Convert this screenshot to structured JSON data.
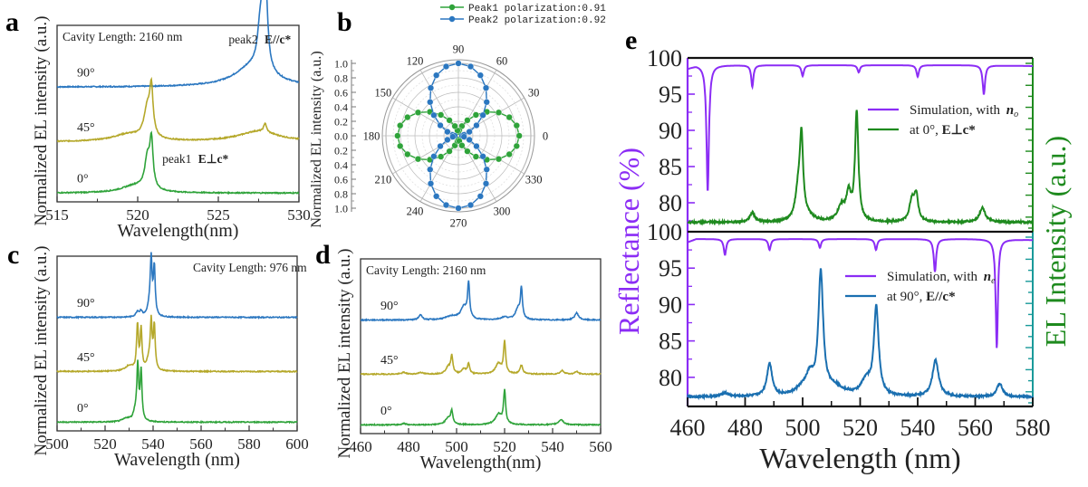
{
  "figure": {
    "panel_labels": [
      "a",
      "b",
      "c",
      "d",
      "e"
    ]
  },
  "chart_data": [
    {
      "panel": "a",
      "type": "line",
      "title": "",
      "annotation": "Cavity Length: 2160 nm",
      "xlabel": "Wavelength(nm)",
      "ylabel": "Normalized EL intensity (a.u.)",
      "xlim": [
        515,
        530
      ],
      "xticks": [
        515,
        520,
        525,
        530
      ],
      "peak_labels": [
        {
          "text": "peak2",
          "bold": "E//c*",
          "x": 526.2,
          "series": "90°"
        },
        {
          "text": "peak1",
          "bold": "E⊥c*",
          "x": 521.3,
          "series": "0°"
        }
      ],
      "series": [
        {
          "name": "90°",
          "color": "#2b77c0",
          "offset": 0.62,
          "baseline": 0.0,
          "peaks": [
            [
              527.2,
              0.12,
              1.4
            ],
            [
              527.6,
              0.22,
              0.2
            ],
            [
              527.95,
              0.35,
              0.15
            ],
            [
              527.8,
              0.28,
              0.12
            ]
          ]
        },
        {
          "name": "45°",
          "color": "#b5a82a",
          "offset": 0.31,
          "baseline": 0.0,
          "peaks": [
            [
              519.4,
              0.04,
              1.2
            ],
            [
              520.6,
              0.17,
              0.25
            ],
            [
              520.85,
              0.25,
              0.12
            ],
            [
              527.5,
              0.06,
              1.5
            ],
            [
              527.9,
              0.05,
              0.1
            ]
          ]
        },
        {
          "name": "0°",
          "color": "#2fa33a",
          "offset": 0.02,
          "baseline": 0.0,
          "peaks": [
            [
              519.8,
              0.04,
              1.0
            ],
            [
              520.6,
              0.17,
              0.2
            ],
            [
              520.85,
              0.26,
              0.12
            ]
          ]
        }
      ]
    },
    {
      "panel": "b",
      "type": "scatter",
      "subtype": "polar",
      "ylabel": "Normalized EL intensity (a.u.)",
      "radial_ticks": [
        "1.0",
        "0.8",
        "0.6",
        "0.4",
        "0.2",
        "0.0",
        "0.2",
        "0.4",
        "0.6",
        "0.8",
        "1.0"
      ],
      "angle_ticks": [
        0,
        30,
        60,
        90,
        120,
        150,
        180,
        210,
        240,
        270,
        300,
        330
      ],
      "rlim": [
        0,
        1.0
      ],
      "angle_step_deg": 10,
      "legend": [
        {
          "label": "Peak1 polarization:0.91",
          "color": "#2fa33a"
        },
        {
          "label": "Peak2 polarization:0.92",
          "color": "#2b77c0"
        }
      ],
      "series": [
        {
          "name": "Peak1",
          "color": "#2fa33a",
          "max": 0.84,
          "min": 0.05,
          "phase_deg": 0
        },
        {
          "name": "Peak2",
          "color": "#2b77c0",
          "max": 1.0,
          "min": 0.05,
          "phase_deg": 90
        }
      ]
    },
    {
      "panel": "c",
      "type": "line",
      "annotation": "Cavity Length: 976 nm",
      "xlabel": "Wavelength (nm)",
      "ylabel": "Normalized EL intensity (a.u.)",
      "xlim": [
        500,
        600
      ],
      "xticks": [
        500,
        520,
        540,
        560,
        580,
        600
      ],
      "series": [
        {
          "name": "90°",
          "color": "#2b77c0",
          "offset": 0.62,
          "peaks": [
            [
              533.5,
              0.03,
              0.8
            ],
            [
              535,
              0.03,
              0.6
            ],
            [
              538.5,
              0.06,
              1.0
            ],
            [
              539.2,
              0.3,
              0.45
            ],
            [
              540.5,
              0.28,
              0.45
            ]
          ]
        },
        {
          "name": "45°",
          "color": "#b5a82a",
          "offset": 0.31,
          "peaks": [
            [
              530,
              0.03,
              2.0
            ],
            [
              533.5,
              0.26,
              0.45
            ],
            [
              535,
              0.23,
              0.45
            ],
            [
              539.2,
              0.26,
              0.45
            ],
            [
              540.5,
              0.25,
              0.45
            ],
            [
              538.2,
              0.06,
              1.0
            ]
          ]
        },
        {
          "name": "0°",
          "color": "#2fa33a",
          "offset": 0.02,
          "peaks": [
            [
              529,
              0.02,
              2.0
            ],
            [
              532.5,
              0.05,
              0.9
            ],
            [
              533.6,
              0.31,
              0.45
            ],
            [
              535,
              0.28,
              0.45
            ]
          ]
        }
      ]
    },
    {
      "panel": "d",
      "type": "line",
      "annotation": "Cavity Length: 2160 nm",
      "xlabel": "Wavelength(nm)",
      "ylabel": "Normalized EL intensity (a.u.)",
      "xlim": [
        460,
        560
      ],
      "xticks": [
        460,
        480,
        500,
        520,
        540,
        560
      ],
      "series": [
        {
          "name": "90°",
          "color": "#2b77c0",
          "offset": 0.62,
          "peaks": [
            [
              485,
              0.03,
              0.8
            ],
            [
              498,
              0.02,
              3.0
            ],
            [
              503,
              0.07,
              1.5
            ],
            [
              505,
              0.2,
              0.5
            ],
            [
              520,
              0.015,
              2.0
            ],
            [
              525.5,
              0.06,
              1.2
            ],
            [
              527,
              0.17,
              0.5
            ],
            [
              550,
              0.04,
              1.0
            ]
          ]
        },
        {
          "name": "45°",
          "color": "#b5a82a",
          "offset": 0.31,
          "peaks": [
            [
              478,
              0.01,
              1.0
            ],
            [
              485,
              0.01,
              1.0
            ],
            [
              496.5,
              0.04,
              1.2
            ],
            [
              498,
              0.1,
              0.5
            ],
            [
              503,
              0.03,
              1.0
            ],
            [
              505,
              0.06,
              0.5
            ],
            [
              517.5,
              0.06,
              1.5
            ],
            [
              520,
              0.18,
              0.5
            ],
            [
              527,
              0.05,
              0.7
            ],
            [
              544,
              0.02,
              1.0
            ],
            [
              550,
              0.015,
              0.8
            ]
          ]
        },
        {
          "name": "0°",
          "color": "#2fa33a",
          "offset": 0.02,
          "peaks": [
            [
              478,
              0.008,
              1.0
            ],
            [
              496.5,
              0.04,
              1.4
            ],
            [
              498,
              0.07,
              0.5
            ],
            [
              517.5,
              0.06,
              1.6
            ],
            [
              520,
              0.19,
              0.5
            ],
            [
              543.5,
              0.03,
              1.2
            ]
          ]
        }
      ]
    },
    {
      "panel": "e",
      "type": "line",
      "xlabel": "Wavelength (nm)",
      "ylabel_left": "Reflectance (%)",
      "ylabel_right": "EL Intensity (a.u.)",
      "xlim": [
        460,
        580
      ],
      "xticks": [
        460,
        480,
        500,
        520,
        540,
        560,
        580
      ],
      "subplots": [
        {
          "ylim": [
            76,
            100
          ],
          "yticks": [
            80,
            85,
            90,
            95,
            100
          ],
          "legend": [
            {
              "label": "Simulation, with ",
              "italic": "n",
              "sub": "o",
              "color": "#8b2cf5"
            },
            {
              "label": "at 0°, ",
              "bold": "E⊥c*",
              "color": "#1e8a1e"
            }
          ],
          "reflectance": {
            "color": "#8b2cf5",
            "baseline": 99.0,
            "dips": [
              [
                467,
                17.5,
                0.5
              ],
              [
                482.5,
                3.0,
                0.45
              ],
              [
                500,
                1.5,
                0.5
              ],
              [
                519.5,
                1.0,
                0.5
              ],
              [
                540,
                1.6,
                0.5
              ],
              [
                563,
                4.0,
                0.5
              ]
            ]
          },
          "el": {
            "color": "#1e8a1e",
            "baseline": 77.3,
            "peaks": [
              [
                482.5,
                1.3,
                1.0
              ],
              [
                498.5,
                4.0,
                1.2
              ],
              [
                499.6,
                10.5,
                0.7
              ],
              [
                502,
                0.6,
                2.5
              ],
              [
                513.5,
                2.0,
                1.5
              ],
              [
                516,
                3.5,
                1.0
              ],
              [
                518.8,
                15.0,
                0.7
              ],
              [
                538,
                3.0,
                1.0
              ],
              [
                539.5,
                3.5,
                0.8
              ],
              [
                562.5,
                2.0,
                1.2
              ]
            ]
          }
        },
        {
          "ylim": [
            76,
            100
          ],
          "yticks": [
            80,
            85,
            90,
            95,
            100
          ],
          "legend": [
            {
              "label": "Simulation, with ",
              "italic": "n",
              "sub": "e",
              "color": "#8b2cf5"
            },
            {
              "label": "at 90°, ",
              "bold": "E//c*",
              "color": "#1a6fb0"
            }
          ],
          "reflectance": {
            "color": "#8b2cf5",
            "baseline": 99.0,
            "dips": [
              [
                473,
                2.2,
                0.5
              ],
              [
                488.5,
                1.5,
                0.5
              ],
              [
                506,
                1.2,
                0.5
              ],
              [
                525.5,
                1.5,
                0.5
              ],
              [
                546,
                4.5,
                0.5
              ],
              [
                567.5,
                15.0,
                0.45
              ]
            ]
          },
          "el": {
            "color": "#1a6fb0",
            "baseline": 77.3,
            "peaks": [
              [
                473,
                0.5,
                1.5
              ],
              [
                488.5,
                4.5,
                1.1
              ],
              [
                500,
                1.0,
                3.0
              ],
              [
                502.5,
                2.2,
                1.5
              ],
              [
                506.3,
                16.5,
                1.0
              ],
              [
                511,
                1.2,
                4.0
              ],
              [
                522,
                2.0,
                2.0
              ],
              [
                525.6,
                12.0,
                1.0
              ],
              [
                546.2,
                5.0,
                1.3
              ],
              [
                568.5,
                1.8,
                1.2
              ]
            ]
          }
        }
      ]
    }
  ]
}
